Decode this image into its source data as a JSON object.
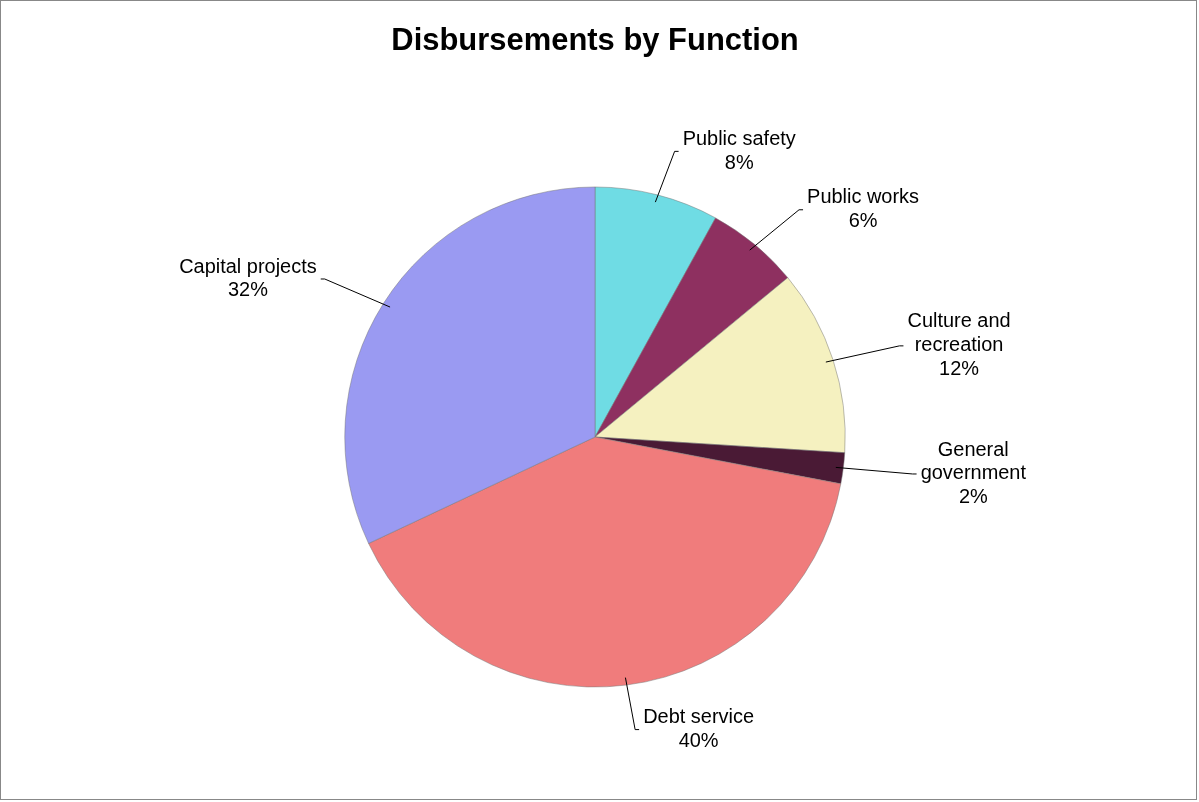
{
  "chart_data": {
    "type": "pie",
    "title": "Disbursements by Function",
    "categories": [
      "Public safety",
      "Public works",
      "Culture and recreation",
      "General government",
      "Debt service",
      "Capital projects"
    ],
    "values": [
      8,
      6,
      12,
      2,
      40,
      32
    ],
    "value_labels": [
      "8%",
      "6%",
      "12%",
      "2%",
      "40%",
      "32%"
    ],
    "colors": [
      "#6fdce4",
      "#8e3060",
      "#f5f1c0",
      "#4a1a35",
      "#f07c7c",
      "#9a9af2"
    ],
    "legend": false
  }
}
